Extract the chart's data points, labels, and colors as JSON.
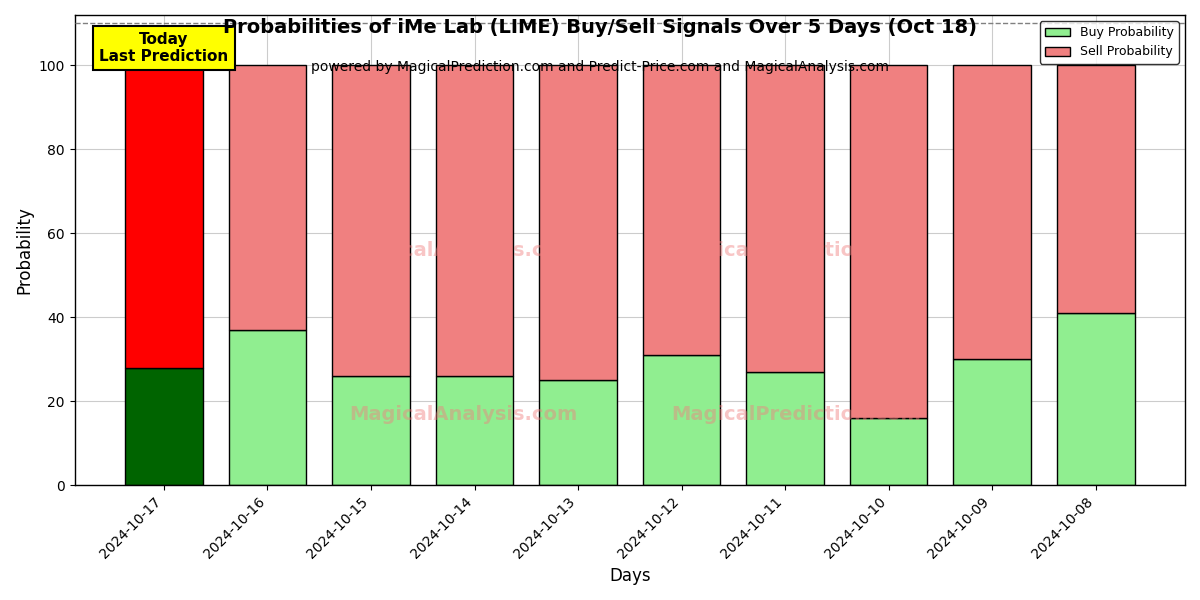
{
  "title": "Probabilities of iMe Lab (LIME) Buy/Sell Signals Over 5 Days (Oct 18)",
  "subtitle": "powered by MagicalPrediction.com and Predict-Price.com and MagicalAnalysis.com",
  "xlabel": "Days",
  "ylabel": "Probability",
  "categories": [
    "2024-10-17",
    "2024-10-16",
    "2024-10-15",
    "2024-10-14",
    "2024-10-13",
    "2024-10-12",
    "2024-10-11",
    "2024-10-10",
    "2024-10-09",
    "2024-10-08"
  ],
  "buy_values": [
    28,
    37,
    26,
    26,
    25,
    31,
    27,
    16,
    30,
    41
  ],
  "sell_values": [
    72,
    63,
    74,
    74,
    75,
    69,
    73,
    84,
    70,
    59
  ],
  "buy_color_today": "#006400",
  "sell_color_today": "#FF0000",
  "buy_color_other": "#90EE90",
  "sell_color_other": "#F08080",
  "bar_edge_color": "black",
  "bar_edge_width": 1.0,
  "ylim": [
    0,
    112
  ],
  "dashed_line_y": 110,
  "watermark_line1": "MagicalAnalysis.com",
  "watermark_line2": "MagicalPrediction.com",
  "watermark_full": "MagicalAnalysis.com          MagicalPrediction.com",
  "annotation_text": "Today\nLast Prediction",
  "annotation_bg": "#FFFF00",
  "legend_buy_label": "Buy Probability",
  "legend_sell_label": "Sell Probability",
  "grid_color": "#cccccc",
  "background_color": "#ffffff",
  "fig_width": 12.0,
  "fig_height": 6.0
}
